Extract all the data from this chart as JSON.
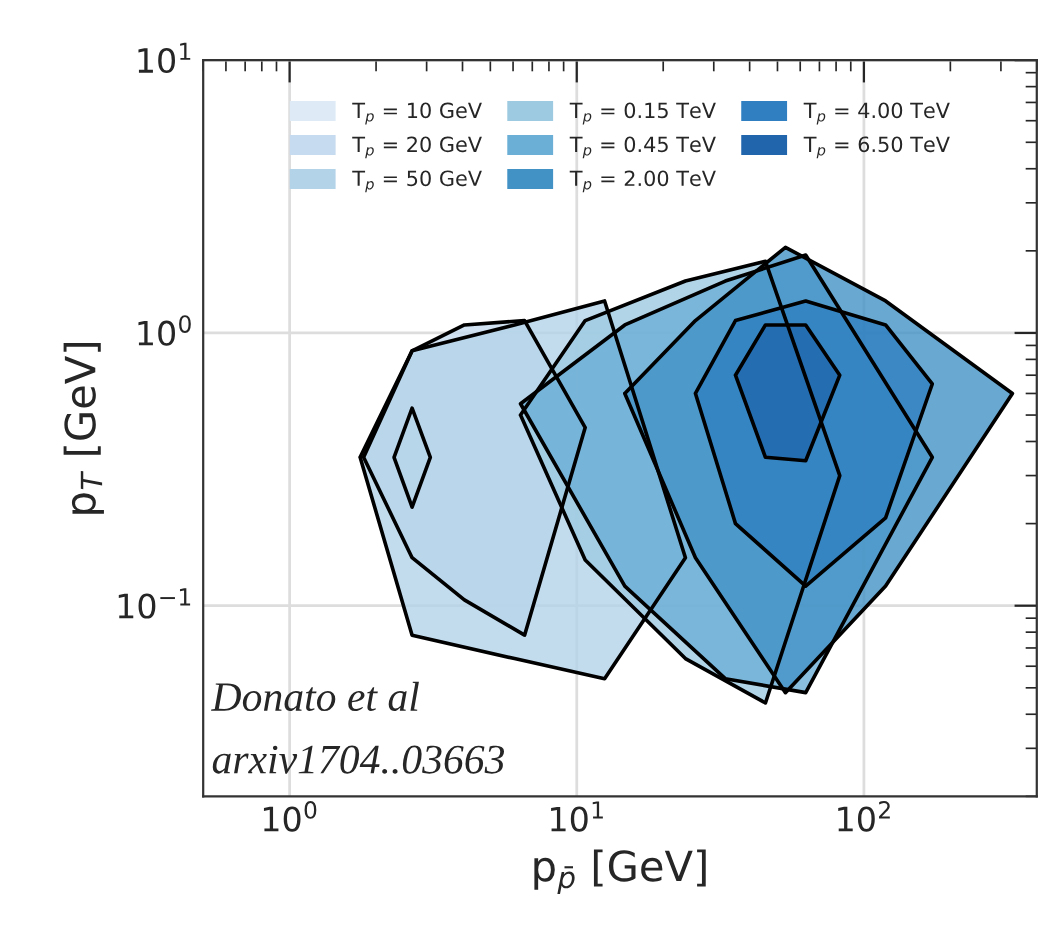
{
  "chart_data": {
    "type": "area",
    "xlabel": "p$_{p̄}$ [GeV]",
    "ylabel": "p$_{T}$ [GeV]",
    "log": "xy",
    "grid": true,
    "legend": "top",
    "xlim": [
      0.5,
      400
    ],
    "ylim": [
      0.02,
      10
    ],
    "xticks": [
      {
        "value": 1,
        "label": "10$^{0}$"
      },
      {
        "value": 10,
        "label": "10$^{1}$"
      },
      {
        "value": 100,
        "label": "10$^{2}$"
      }
    ],
    "yticks": [
      {
        "value": 0.1,
        "label": "10$^{−1}$"
      },
      {
        "value": 1,
        "label": "10$^{0}$"
      },
      {
        "value": 10,
        "label": "10$^{1}$"
      }
    ],
    "annotations": [
      "Donato et al",
      "arxiv1704..03663"
    ],
    "series": [
      {
        "name": "T$_{p}$ = 10 GeV",
        "color": "#deebf7",
        "x": [
          2.31,
          2.67,
          3.09,
          2.67
        ],
        "values": [
          0.35,
          0.53,
          0.35,
          0.23
        ]
      },
      {
        "name": "T$_{p}$ = 20 GeV",
        "color": "#c6dbef",
        "x": [
          1.81,
          2.67,
          4.06,
          6.58,
          10.7,
          6.58,
          4.06,
          2.67
        ],
        "values": [
          0.35,
          0.86,
          1.07,
          1.11,
          0.45,
          0.078,
          0.105,
          0.15
        ]
      },
      {
        "name": "T$_{p}$ = 50 GeV",
        "color": "#b3d3e8",
        "x": [
          1.76,
          2.67,
          6.07,
          12.5,
          23.9,
          12.5,
          6.07,
          2.67
        ],
        "values": [
          0.35,
          0.86,
          1.07,
          1.31,
          0.15,
          0.054,
          0.064,
          0.078
        ]
      },
      {
        "name": "T$_{p}$ = 0.15 TeV",
        "color": "#9ecae1",
        "x": [
          6.37,
          10.7,
          23.9,
          45.4,
          82.4,
          45.4,
          23.9,
          10.7
        ],
        "values": [
          0.5,
          1.11,
          1.55,
          1.83,
          0.3,
          0.044,
          0.064,
          0.147
        ]
      },
      {
        "name": "T$_{p}$ = 0.45 TeV",
        "color": "#6baed6",
        "x": [
          6.37,
          14.7,
          32.9,
          62.7,
          173,
          62.7,
          32.9,
          14.7
        ],
        "values": [
          0.55,
          1.07,
          1.55,
          1.93,
          0.35,
          0.048,
          0.054,
          0.118
        ]
      },
      {
        "name": "T$_{p}$ = 2.00 TeV",
        "color": "#4292c6",
        "x": [
          14.7,
          25.9,
          53.3,
          119,
          329,
          119,
          53.3,
          25.9
        ],
        "values": [
          0.6,
          1.11,
          2.06,
          1.31,
          0.6,
          0.118,
          0.048,
          0.15
        ]
      },
      {
        "name": "T$_{p}$ = 4.00 TeV",
        "color": "#2f7fc1",
        "x": [
          25.9,
          35.7,
          62.7,
          119,
          173,
          119,
          62.7,
          35.7
        ],
        "values": [
          0.6,
          1.11,
          1.31,
          1.07,
          0.65,
          0.21,
          0.118,
          0.2
        ]
      },
      {
        "name": "T$_{p}$ = 6.50 TeV",
        "color": "#2166ac",
        "x": [
          35.7,
          45.4,
          62.7,
          82.4,
          62.7,
          45.4
        ],
        "values": [
          0.7,
          1.07,
          1.07,
          0.7,
          0.34,
          0.35
        ]
      }
    ]
  }
}
